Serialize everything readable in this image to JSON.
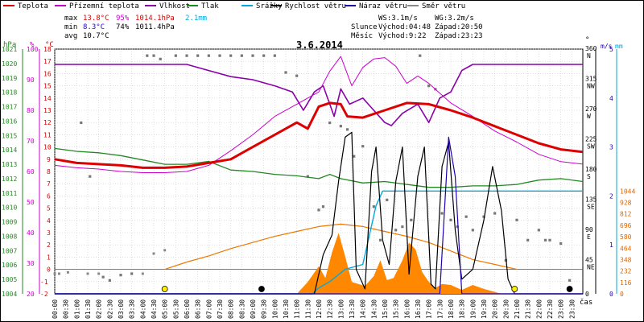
{
  "chart_data": {
    "type": "line",
    "title": "3.6.2014",
    "legend": [
      {
        "key": "teplota",
        "label": "Teplota",
        "color": "#dd0000"
      },
      {
        "key": "prizemni",
        "label": "Přízemní teplota",
        "color": "#cc00cc"
      },
      {
        "key": "vlhkost",
        "label": "Vlhkost",
        "color": "#8a00aa"
      },
      {
        "key": "tlak",
        "label": "Tlak",
        "color": "#228822"
      },
      {
        "key": "srazky",
        "label": "Srážky",
        "color": "#00aadd"
      },
      {
        "key": "rychlost",
        "label": "Rychlost větru",
        "color": "#000000"
      },
      {
        "key": "naraz",
        "label": "Náraz větru",
        "color": "#2200aa"
      },
      {
        "key": "smer",
        "label": "Směr větru",
        "color": "#888888"
      }
    ],
    "stats": {
      "max_label": "max",
      "max_temp": "13.8°C",
      "max_hum": "95%",
      "max_press": "1014.1hPa",
      "max_rain": "2.1mm",
      "min_label": "min",
      "min_temp": "8.3°C",
      "min_hum": "74%",
      "min_press": "1011.4hPa",
      "avg_label": "avg",
      "avg_temp": "10.7°C"
    },
    "wind_info": {
      "ws": "WS:3.1m/s",
      "wg": "WG:3.2m/s"
    },
    "sun_info": {
      "label": "Slunce",
      "rise": "Východ:04:48",
      "set": "Západ:20:50"
    },
    "moon_info": {
      "label": "Měsíc",
      "rise": "Východ:9:22",
      "set": "Západ:23:23"
    },
    "x_axis_label": "čas",
    "x_ticks": [
      "00:00",
      "00:30",
      "01:00",
      "01:30",
      "02:00",
      "02:30",
      "03:00",
      "03:30",
      "04:00",
      "04:30",
      "05:00",
      "05:30",
      "06:00",
      "06:30",
      "07:00",
      "07:30",
      "08:00",
      "08:30",
      "09:00",
      "09:30",
      "10:00",
      "10:30",
      "11:00",
      "11:30",
      "12:00",
      "12:30",
      "13:00",
      "13:30",
      "14:00",
      "14:30",
      "15:00",
      "15:30",
      "16:00",
      "16:30",
      "17:00",
      "17:30",
      "18:00",
      "18:30",
      "19:00",
      "19:30",
      "20:00",
      "20:30",
      "21:00",
      "21:30",
      "22:00",
      "22:30",
      "23:00",
      "23:30"
    ],
    "axes": {
      "hpa": {
        "unit": "hPa",
        "min": 1004,
        "max": 1021,
        "ticks": [
          1004,
          1005,
          1006,
          1007,
          1008,
          1009,
          1010,
          1011,
          1012,
          1013,
          1014,
          1015,
          1016,
          1017,
          1018,
          1019,
          1020,
          1021
        ],
        "color": "#228822"
      },
      "pct": {
        "unit": "%",
        "min": 20,
        "max": 100,
        "ticks": [
          20,
          30,
          40,
          50,
          60,
          70,
          80,
          90,
          100
        ],
        "color": "#cc00cc"
      },
      "temp": {
        "unit": "°C",
        "min": -2,
        "max": 18,
        "ticks": [
          -2,
          -1,
          0,
          1,
          2,
          3,
          4,
          5,
          6,
          7,
          8,
          9,
          10,
          11,
          12,
          13,
          14,
          15,
          16,
          17,
          18
        ],
        "color": "#dd0000"
      },
      "dir": {
        "unit": "°",
        "ticks": [
          {
            "v": 0,
            "l": "0"
          },
          {
            "v": 45,
            "l": "45\nNE"
          },
          {
            "v": 90,
            "l": "90\nE"
          },
          {
            "v": 135,
            "l": "135\nSE"
          },
          {
            "v": 180,
            "l": "180\nS"
          },
          {
            "v": 225,
            "l": "225\nSW"
          },
          {
            "v": 270,
            "l": "270\nW"
          },
          {
            "v": 315,
            "l": "315\nNW"
          },
          {
            "v": 360,
            "l": "360\nN"
          }
        ],
        "min": 0,
        "max": 360
      },
      "ms": {
        "unit": "m/s",
        "min": 0,
        "max": 5,
        "ticks": [
          0,
          1,
          2,
          3,
          4,
          5
        ],
        "color": "#2200aa"
      },
      "mm": {
        "unit": "mm",
        "ticks": [
          0,
          116,
          232,
          348,
          464,
          580,
          696,
          812,
          928,
          1044
        ],
        "min": 0,
        "max": 1044,
        "color": "#dd6600"
      }
    },
    "series": {
      "teplota": [
        [
          0,
          9.0
        ],
        [
          1,
          8.7
        ],
        [
          2,
          8.6
        ],
        [
          3,
          8.5
        ],
        [
          4,
          8.3
        ],
        [
          5,
          8.3
        ],
        [
          6,
          8.4
        ],
        [
          7,
          8.7
        ],
        [
          8,
          9.0
        ],
        [
          9,
          10.0
        ],
        [
          10,
          11.0
        ],
        [
          11,
          12.0
        ],
        [
          11.5,
          11.5
        ],
        [
          12,
          13.3
        ],
        [
          12.5,
          13.6
        ],
        [
          13,
          13.5
        ],
        [
          13.3,
          12.5
        ],
        [
          14,
          12.4
        ],
        [
          15,
          13.0
        ],
        [
          16,
          13.6
        ],
        [
          17,
          13.5
        ],
        [
          18,
          13.0
        ],
        [
          19,
          12.4
        ],
        [
          20,
          11.7
        ],
        [
          21,
          11.0
        ],
        [
          22,
          10.3
        ],
        [
          23,
          9.8
        ],
        [
          24,
          9.6
        ]
      ],
      "prizemni": [
        [
          0,
          8.5
        ],
        [
          1,
          8.3
        ],
        [
          2,
          8.2
        ],
        [
          3,
          8.0
        ],
        [
          4,
          7.9
        ],
        [
          5,
          7.9
        ],
        [
          6,
          8.0
        ],
        [
          7,
          8.5
        ],
        [
          8,
          9.7
        ],
        [
          9,
          11.0
        ],
        [
          10,
          12.5
        ],
        [
          11,
          13.5
        ],
        [
          12,
          14.5
        ],
        [
          12.5,
          16.2
        ],
        [
          13,
          17.4
        ],
        [
          13.5,
          15.0
        ],
        [
          14,
          16.5
        ],
        [
          14.5,
          17.2
        ],
        [
          15,
          17.3
        ],
        [
          15.5,
          16.6
        ],
        [
          16,
          15.2
        ],
        [
          16.5,
          15.8
        ],
        [
          17,
          15.2
        ],
        [
          18,
          13.6
        ],
        [
          19,
          12.5
        ],
        [
          20,
          11.3
        ],
        [
          21,
          10.4
        ],
        [
          22,
          9.4
        ],
        [
          23,
          8.8
        ],
        [
          24,
          8.6
        ]
      ],
      "vlhkost": [
        [
          0,
          95
        ],
        [
          5,
          95
        ],
        [
          6,
          95
        ],
        [
          7,
          93
        ],
        [
          8,
          91
        ],
        [
          9,
          90
        ],
        [
          10,
          88
        ],
        [
          10.8,
          86
        ],
        [
          11.3,
          80
        ],
        [
          11.8,
          86
        ],
        [
          12.2,
          88
        ],
        [
          12.7,
          78
        ],
        [
          13,
          87
        ],
        [
          13.4,
          82
        ],
        [
          14,
          84
        ],
        [
          14.5,
          80
        ],
        [
          15,
          76
        ],
        [
          15.3,
          75
        ],
        [
          15.8,
          79
        ],
        [
          16.5,
          82
        ],
        [
          17,
          76
        ],
        [
          17.5,
          84
        ],
        [
          18,
          86
        ],
        [
          18.5,
          93
        ],
        [
          19,
          95
        ],
        [
          24,
          95
        ]
      ],
      "tlak": [
        [
          0,
          1014.1
        ],
        [
          1,
          1013.9
        ],
        [
          2,
          1013.8
        ],
        [
          3,
          1013.6
        ],
        [
          4,
          1013.3
        ],
        [
          5,
          1013.0
        ],
        [
          6,
          1013.0
        ],
        [
          7,
          1013.2
        ],
        [
          8,
          1012.6
        ],
        [
          9,
          1012.5
        ],
        [
          10,
          1012.3
        ],
        [
          11,
          1012.2
        ],
        [
          12,
          1012.0
        ],
        [
          12.5,
          1012.3
        ],
        [
          13,
          1012.0
        ],
        [
          14,
          1011.7
        ],
        [
          15,
          1011.8
        ],
        [
          16,
          1011.6
        ],
        [
          17,
          1011.4
        ],
        [
          18,
          1011.4
        ],
        [
          19,
          1011.5
        ],
        [
          20,
          1011.5
        ],
        [
          21,
          1011.6
        ],
        [
          22,
          1011.9
        ],
        [
          23,
          1012.0
        ],
        [
          24,
          1011.8
        ]
      ],
      "srazky": [
        [
          0,
          0
        ],
        [
          11.7,
          0
        ],
        [
          12.0,
          0.12
        ],
        [
          12.5,
          0.25
        ],
        [
          13.2,
          0.5
        ],
        [
          14,
          0.6
        ],
        [
          14.6,
          1.8
        ],
        [
          14.9,
          2.1
        ],
        [
          24,
          2.1
        ]
      ],
      "rychlost": [
        [
          0,
          0
        ],
        [
          11.8,
          0
        ],
        [
          12.2,
          0.8
        ],
        [
          12.6,
          1.2
        ],
        [
          12.9,
          2.3
        ],
        [
          13.2,
          3.2
        ],
        [
          13.5,
          3.3
        ],
        [
          13.7,
          0.5
        ],
        [
          14.1,
          0.1
        ],
        [
          14.4,
          2.5
        ],
        [
          14.6,
          3.0
        ],
        [
          14.9,
          1.1
        ],
        [
          15.2,
          0.6
        ],
        [
          15.5,
          2.3
        ],
        [
          15.8,
          3.0
        ],
        [
          16.1,
          0.4
        ],
        [
          16.5,
          2.4
        ],
        [
          16.8,
          3.0
        ],
        [
          17.1,
          0.2
        ],
        [
          17.3,
          0.1
        ],
        [
          17.6,
          2.6
        ],
        [
          17.9,
          3.1
        ],
        [
          18.2,
          1.3
        ],
        [
          18.5,
          0.3
        ],
        [
          19.0,
          0.5
        ],
        [
          19.5,
          1.5
        ],
        [
          19.9,
          2.6
        ],
        [
          20.3,
          1.7
        ],
        [
          20.6,
          0.3
        ],
        [
          20.9,
          0
        ],
        [
          24,
          0
        ]
      ],
      "naraz": [
        [
          0,
          0
        ],
        [
          17.5,
          0
        ],
        [
          17.9,
          3.2
        ],
        [
          18.2,
          2.4
        ],
        [
          18.5,
          0
        ],
        [
          24,
          0
        ]
      ],
      "slunce": [
        [
          5.0,
          0
        ],
        [
          6,
          0.6
        ],
        [
          7,
          1.1
        ],
        [
          8,
          1.7
        ],
        [
          9,
          2.2
        ],
        [
          10,
          2.7
        ],
        [
          11,
          3.1
        ],
        [
          12,
          3.5
        ],
        [
          13,
          3.7
        ],
        [
          14,
          3.5
        ],
        [
          15,
          3.1
        ],
        [
          16,
          2.7
        ],
        [
          17,
          2.2
        ],
        [
          18,
          1.5
        ],
        [
          19,
          0.8
        ],
        [
          20,
          0.4
        ],
        [
          21,
          0
        ]
      ],
      "srazky_intenzita": [
        [
          0,
          0
        ],
        [
          11,
          0
        ],
        [
          11.5,
          120
        ],
        [
          12,
          280
        ],
        [
          12.3,
          160
        ],
        [
          12.6,
          420
        ],
        [
          12.9,
          620
        ],
        [
          13.2,
          380
        ],
        [
          13.5,
          120
        ],
        [
          14.1,
          80
        ],
        [
          14.5,
          180
        ],
        [
          14.8,
          340
        ],
        [
          15.1,
          140
        ],
        [
          15.4,
          160
        ],
        [
          15.8,
          340
        ],
        [
          16.1,
          520
        ],
        [
          16.4,
          450
        ],
        [
          16.7,
          220
        ],
        [
          17.0,
          120
        ],
        [
          17.3,
          60
        ],
        [
          17.6,
          100
        ],
        [
          18,
          90
        ],
        [
          18.5,
          40
        ],
        [
          19,
          90
        ],
        [
          19.5,
          50
        ],
        [
          20.0,
          20
        ],
        [
          20.3,
          0
        ],
        [
          24,
          0
        ]
      ]
    },
    "wind_dir_points": [
      [
        0,
        30
      ],
      [
        0.2,
        30
      ],
      [
        0.6,
        32
      ],
      [
        1.5,
        30
      ],
      [
        2.0,
        30
      ],
      [
        4.0,
        30
      ],
      [
        4.5,
        60
      ],
      [
        5,
        65
      ],
      [
        6.5,
        65
      ],
      [
        7,
        65
      ],
      [
        8.5,
        65
      ],
      [
        9,
        70
      ],
      [
        10,
        70
      ],
      [
        10.5,
        65
      ],
      [
        11,
        70
      ],
      [
        11.5,
        72
      ],
      [
        12,
        72
      ],
      [
        12.5,
        70
      ],
      [
        13,
        72
      ],
      [
        13.5,
        73
      ],
      [
        14,
        65
      ],
      [
        14.5,
        72
      ],
      [
        15,
        73
      ],
      [
        16,
        72
      ],
      [
        16.5,
        73
      ],
      [
        17,
        70
      ],
      [
        17.5,
        70
      ],
      [
        18,
        73
      ],
      [
        18.5,
        65
      ],
      [
        19,
        72
      ],
      [
        19.5,
        72
      ],
      [
        20,
        65
      ],
      [
        21,
        72
      ],
      [
        21.5,
        73
      ],
      [
        22,
        65
      ],
      [
        22.5,
        73
      ],
      [
        23,
        73
      ],
      [
        23.7,
        65
      ],
      [
        24,
        65
      ]
    ],
    "dir_scatter": [
      [
        1.2,
        255
      ],
      [
        1.6,
        175
      ],
      [
        2.2,
        25
      ],
      [
        2.5,
        20
      ],
      [
        3.0,
        28
      ],
      [
        3.5,
        30
      ],
      [
        4.2,
        355
      ],
      [
        4.5,
        355
      ],
      [
        4.8,
        350
      ],
      [
        5.5,
        355
      ],
      [
        6.0,
        355
      ],
      [
        6.5,
        355
      ],
      [
        7.0,
        355
      ],
      [
        7.5,
        355
      ],
      [
        8.0,
        355
      ],
      [
        8.5,
        355
      ],
      [
        9.0,
        355
      ],
      [
        9.5,
        355
      ],
      [
        10.0,
        355
      ],
      [
        10.5,
        330
      ],
      [
        11.0,
        325
      ],
      [
        11.5,
        175
      ],
      [
        12,
        125
      ],
      [
        12.2,
        130
      ],
      [
        12.5,
        255
      ],
      [
        13,
        250
      ],
      [
        13.3,
        245
      ],
      [
        13.6,
        205
      ],
      [
        14,
        220
      ],
      [
        14.5,
        130
      ],
      [
        14.8,
        80
      ],
      [
        15.1,
        140
      ],
      [
        15.5,
        95
      ],
      [
        15.8,
        100
      ],
      [
        16.2,
        110
      ],
      [
        16.6,
        355
      ],
      [
        17.0,
        310
      ],
      [
        17.3,
        305
      ],
      [
        17.6,
        120
      ],
      [
        18.0,
        110
      ],
      [
        18.3,
        100
      ],
      [
        18.7,
        115
      ],
      [
        19,
        95
      ],
      [
        19.5,
        115
      ],
      [
        20,
        120
      ],
      [
        20.5,
        50
      ],
      [
        21,
        110
      ],
      [
        21.5,
        80
      ],
      [
        22,
        95
      ],
      [
        22.3,
        80
      ],
      [
        22.5,
        80
      ],
      [
        23,
        75
      ],
      [
        23.4,
        20
      ]
    ],
    "marker_points": [
      {
        "h": 5.0,
        "color": "#ffee00"
      },
      {
        "h": 9.4,
        "color": "#000000"
      },
      {
        "h": 20.9,
        "color": "#ffee00"
      },
      {
        "h": 23.4,
        "color": "#000000"
      }
    ]
  }
}
